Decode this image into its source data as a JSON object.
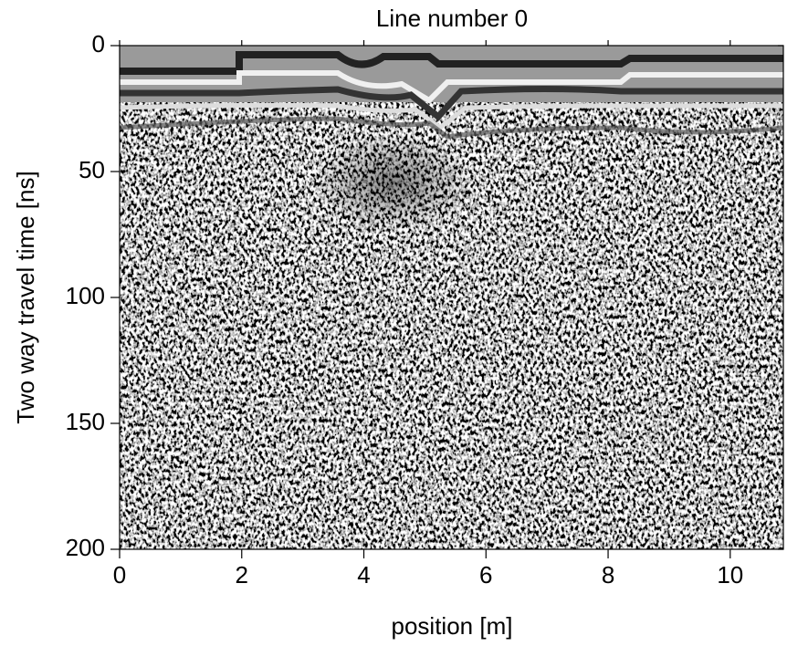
{
  "chart_data": {
    "type": "radargram",
    "title": "Line number 0",
    "x_label": "position [m]",
    "y_label": "Two way travel time [ns]",
    "xlim": [
      0,
      10.87
    ],
    "ylim": [
      0,
      200
    ],
    "xticks": [
      0,
      2,
      4,
      6,
      8,
      10
    ],
    "yticks": [
      0,
      50,
      100,
      150,
      200
    ],
    "y_inverted": true
  }
}
